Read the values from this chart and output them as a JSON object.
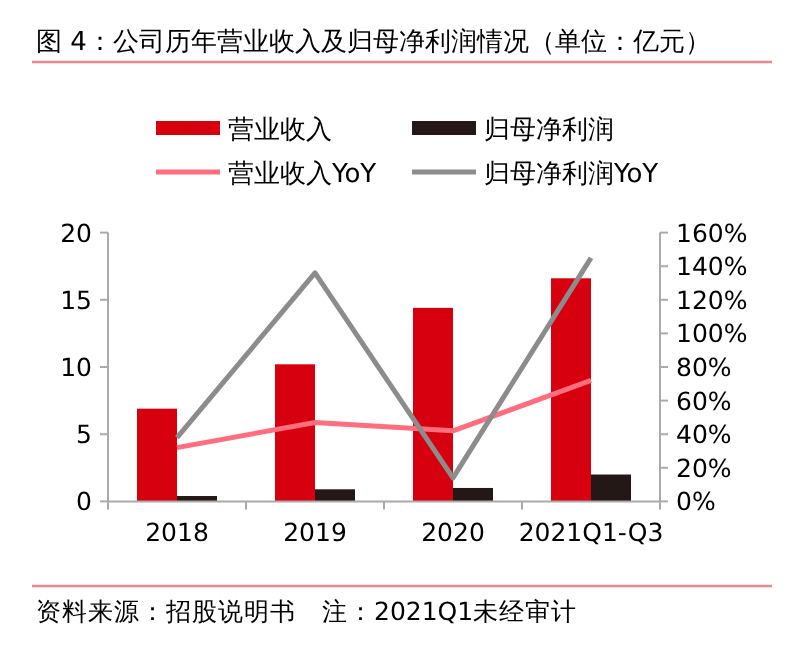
{
  "chart_data": {
    "type": "bar",
    "title": "图 4：公司历年营业收入及归母净利润情况（单位：亿元）",
    "categories": [
      "2018",
      "2019",
      "2020",
      "2021Q1-Q3"
    ],
    "series": [
      {
        "name": "营业收入",
        "color": "#d7000f",
        "values": [
          6.9,
          10.2,
          14.4,
          16.6
        ]
      },
      {
        "name": "归母净利润",
        "color": "#231815",
        "values": [
          0.4,
          0.9,
          1.0,
          2.0
        ]
      },
      {
        "name": "营业收入YoY",
        "type": "line",
        "axis": "y2",
        "color": "#ff6e7f",
        "values": [
          32,
          47,
          42,
          72
        ]
      },
      {
        "name": "归母净利润YoY",
        "type": "line",
        "axis": "y2",
        "color": "#8c8c8c",
        "values": [
          38,
          136,
          14,
          145
        ]
      }
    ],
    "ylim": [
      0,
      20
    ],
    "yticks": [
      0,
      5,
      10,
      15,
      20
    ],
    "y2lim": [
      0,
      160
    ],
    "y2ticks": [
      {
        "value": 0,
        "label": "0%"
      },
      {
        "value": 20,
        "label": "20%"
      },
      {
        "value": 40,
        "label": "40%"
      },
      {
        "value": 60,
        "label": "60%"
      },
      {
        "value": 80,
        "label": "80%"
      },
      {
        "value": 100,
        "label": "100%"
      },
      {
        "value": 120,
        "label": "120%"
      },
      {
        "value": 140,
        "label": "140%"
      },
      {
        "value": 160,
        "label": "160%"
      }
    ],
    "legend": "top",
    "grid": false,
    "annotations": [
      "资料来源：招股说明书　注：2021Q1未经审计"
    ]
  }
}
